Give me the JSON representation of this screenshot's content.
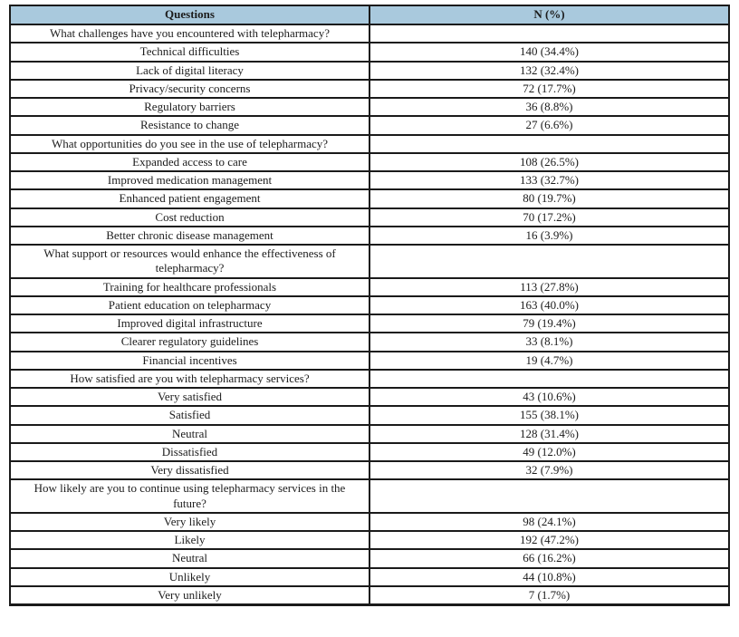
{
  "colors": {
    "header_bg": "#a9c9dd",
    "border": "#1a1a1a",
    "text": "#1c1c1c"
  },
  "table": {
    "columns": [
      {
        "label": "Questions"
      },
      {
        "label": "N (%)"
      }
    ],
    "rows": [
      {
        "type": "question",
        "label": "What challenges have you encountered with telepharmacy?",
        "value": ""
      },
      {
        "type": "item",
        "label": "Technical difficulties",
        "value": "140 (34.4%)"
      },
      {
        "type": "item",
        "label": "Lack of digital literacy",
        "value": "132 (32.4%)"
      },
      {
        "type": "item",
        "label": "Privacy/security concerns",
        "value": "72 (17.7%)"
      },
      {
        "type": "item",
        "label": "Regulatory barriers",
        "value": "36 (8.8%)"
      },
      {
        "type": "item",
        "label": "Resistance to change",
        "value": "27 (6.6%)"
      },
      {
        "type": "question",
        "label": "What opportunities do you see in the use of telepharmacy?",
        "value": ""
      },
      {
        "type": "item",
        "label": "Expanded access to care",
        "value": "108 (26.5%)"
      },
      {
        "type": "item",
        "label": "Improved medication management",
        "value": "133 (32.7%)"
      },
      {
        "type": "item",
        "label": "Enhanced patient engagement",
        "value": "80 (19.7%)"
      },
      {
        "type": "item",
        "label": "Cost reduction",
        "value": "70 (17.2%)"
      },
      {
        "type": "item",
        "label": "Better chronic disease management",
        "value": "16 (3.9%)"
      },
      {
        "type": "question",
        "label": "What support or resources would enhance the effectiveness of telepharmacy?",
        "value": ""
      },
      {
        "type": "item",
        "label": "Training for healthcare professionals",
        "value": "113 (27.8%)"
      },
      {
        "type": "item",
        "label": "Patient education on telepharmacy",
        "value": "163 (40.0%)"
      },
      {
        "type": "item",
        "label": "Improved digital infrastructure",
        "value": "79 (19.4%)"
      },
      {
        "type": "item",
        "label": "Clearer regulatory guidelines",
        "value": "33 (8.1%)"
      },
      {
        "type": "item",
        "label": "Financial incentives",
        "value": "19 (4.7%)"
      },
      {
        "type": "question",
        "label": "How satisfied are you with telepharmacy services?",
        "value": ""
      },
      {
        "type": "item",
        "label": "Very satisfied",
        "value": "43 (10.6%)"
      },
      {
        "type": "item",
        "label": "Satisfied",
        "value": "155 (38.1%)"
      },
      {
        "type": "item",
        "label": "Neutral",
        "value": "128 (31.4%)"
      },
      {
        "type": "item",
        "label": "Dissatisfied",
        "value": "49 (12.0%)"
      },
      {
        "type": "item",
        "label": "Very dissatisfied",
        "value": "32 (7.9%)"
      },
      {
        "type": "question",
        "label": "How likely are you to continue using telepharmacy services in the future?",
        "value": ""
      },
      {
        "type": "item",
        "label": "Very likely",
        "value": "98 (24.1%)"
      },
      {
        "type": "item",
        "label": "Likely",
        "value": "192 (47.2%)"
      },
      {
        "type": "item",
        "label": "Neutral",
        "value": "66 (16.2%)"
      },
      {
        "type": "item",
        "label": "Unlikely",
        "value": "44 (10.8%)"
      },
      {
        "type": "item",
        "label": "Very unlikely",
        "value": "7 (1.7%)"
      }
    ]
  }
}
